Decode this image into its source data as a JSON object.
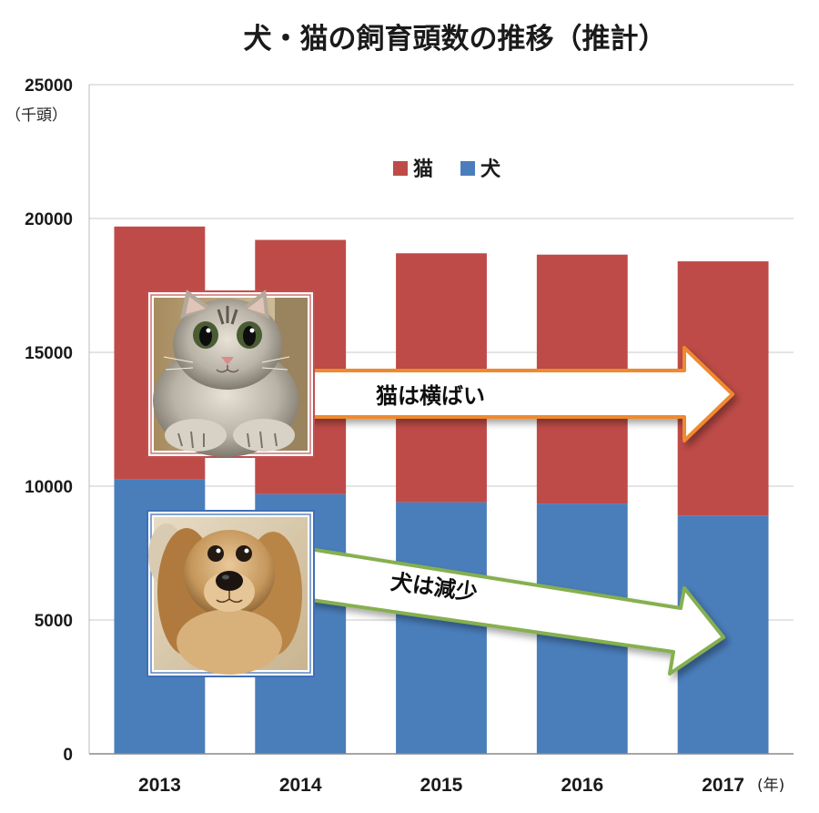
{
  "chart_data": {
    "type": "bar",
    "stacked": true,
    "title": "犬・猫の飼育頭数の推移（推計）",
    "y_unit": "（千頭）",
    "x_unit": "(年)",
    "categories": [
      "2013",
      "2014",
      "2015",
      "2016",
      "2017"
    ],
    "ylim": [
      0,
      25000
    ],
    "yticks": [
      "0",
      "5000",
      "10000",
      "15000",
      "20000",
      "25000"
    ],
    "grid": true,
    "legend_position": "top-center",
    "series": [
      {
        "name": "犬",
        "color": "#4a7ebb",
        "values": [
          10250,
          9700,
          9400,
          9350,
          8900
        ]
      },
      {
        "name": "猫",
        "color": "#be4b48",
        "values": [
          9450,
          9500,
          9300,
          9300,
          9500
        ]
      }
    ],
    "annotations": [
      {
        "text": "猫は横ばい",
        "arrow_color": "#ef8a2f"
      },
      {
        "text": "犬は減少",
        "arrow_color": "#86b050"
      }
    ],
    "photos": [
      {
        "icon": "cat-photo",
        "frame_color": "#c05050"
      },
      {
        "icon": "dog-photo",
        "frame_color": "#3f6fb5"
      }
    ]
  }
}
